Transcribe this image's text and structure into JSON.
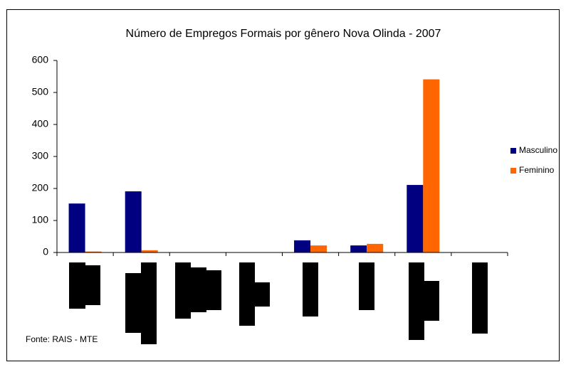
{
  "chart_data": {
    "type": "bar",
    "title": "Número de Empregos Formais por gênero Nova Olinda - 2007",
    "categories": [
      null,
      null,
      null,
      null,
      null,
      null,
      null,
      null
    ],
    "series": [
      {
        "name": "Masculino",
        "color": "#000080",
        "values": [
          153,
          191,
          0,
          0,
          38,
          22,
          211,
          0
        ]
      },
      {
        "name": "Feminino",
        "color": "#ff6600",
        "values": [
          3,
          7,
          0,
          0,
          22,
          27,
          541,
          0
        ]
      }
    ],
    "ylim": [
      0,
      600
    ],
    "yticks": [
      0,
      100,
      200,
      300,
      400,
      500,
      600
    ],
    "grid": false,
    "legend": "right",
    "source": "Fonte: RAIS - MTE"
  }
}
